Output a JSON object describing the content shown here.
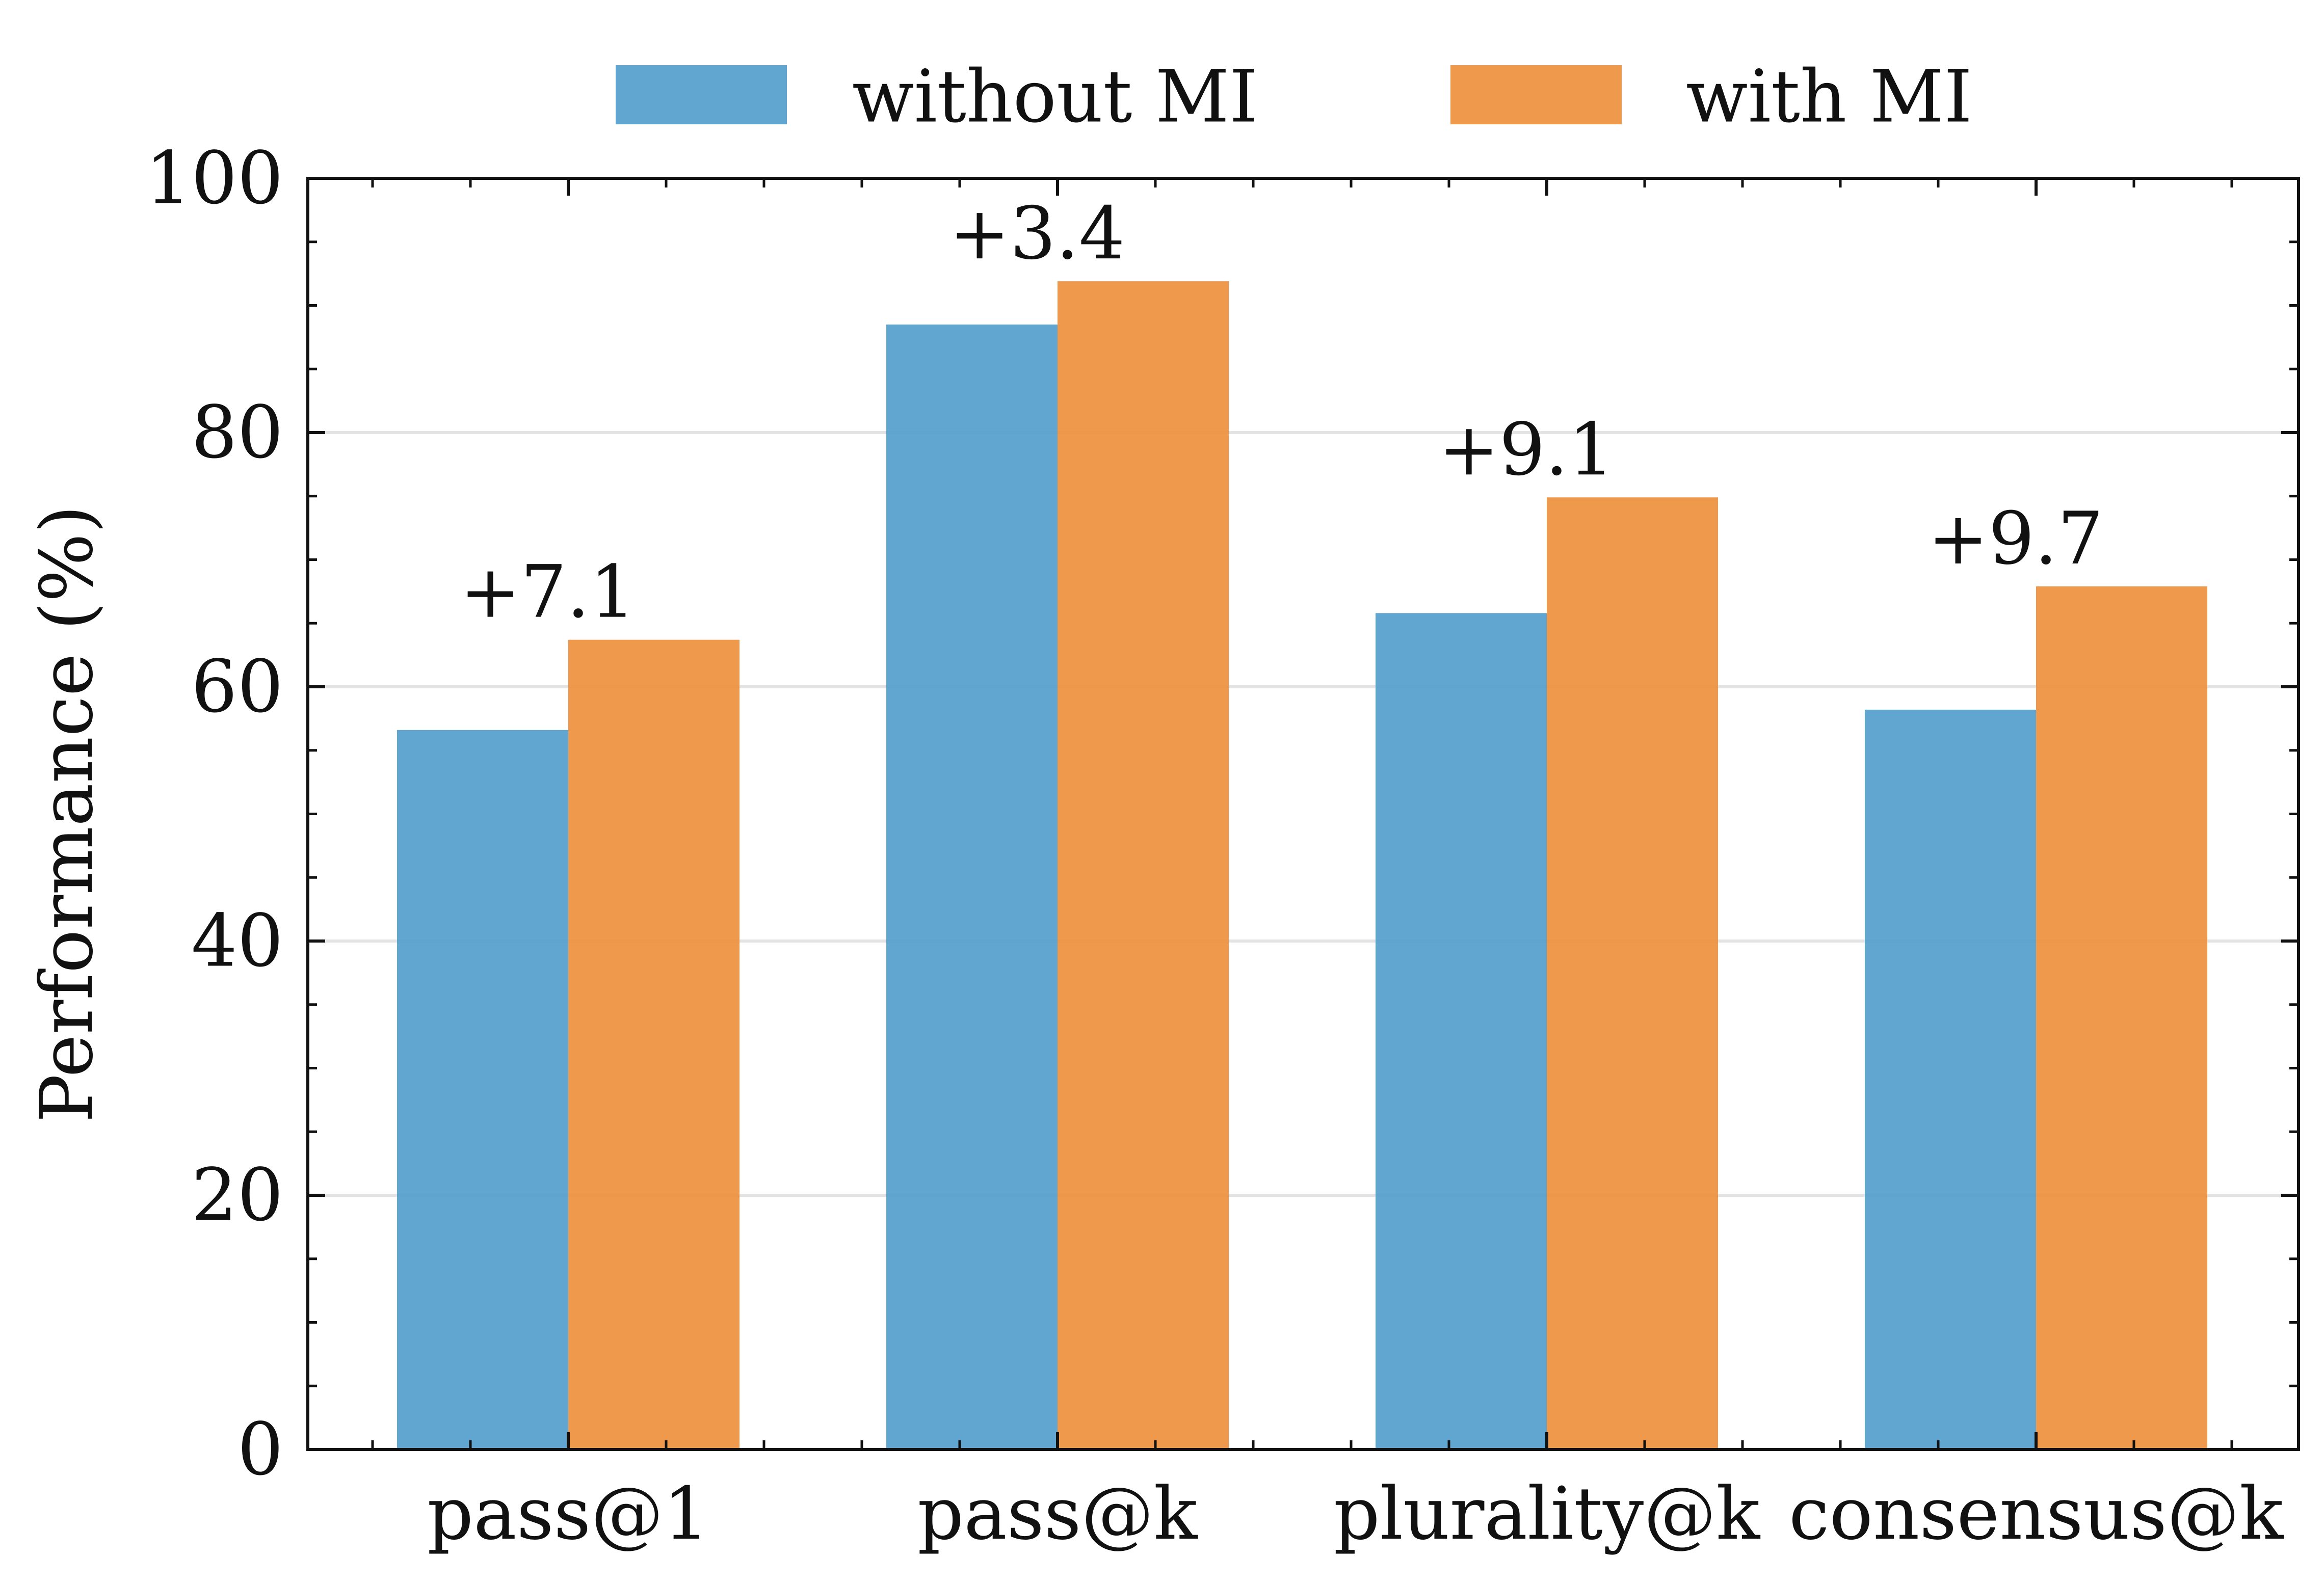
{
  "chart_data": {
    "type": "bar",
    "title": "",
    "xlabel": "",
    "ylabel": "Performance (%)",
    "ylim": [
      0,
      100
    ],
    "yticks": [
      0,
      20,
      40,
      60,
      80,
      100
    ],
    "grid": true,
    "legend_position": "top",
    "categories": [
      "pass@1",
      "pass@k",
      "plurality@k",
      "consensus@k"
    ],
    "series": [
      {
        "name": "without MI",
        "color": "#4f9ccc",
        "values": [
          56.6,
          88.5,
          65.8,
          58.2
        ]
      },
      {
        "name": "with MI",
        "color": "#ed8e38",
        "values": [
          63.7,
          91.9,
          74.9,
          67.9
        ]
      }
    ],
    "annotations": [
      "+7.1",
      "+3.4",
      "+9.1",
      "+9.7"
    ]
  }
}
